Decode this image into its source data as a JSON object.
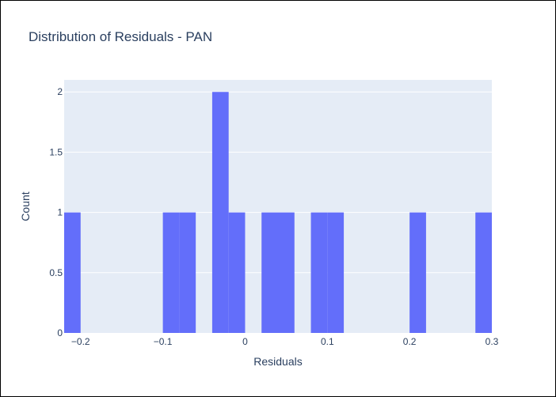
{
  "chart_data": {
    "type": "bar",
    "title": "Distribution of Residuals - PAN",
    "xlabel": "Residuals",
    "ylabel": "Count",
    "bin_width": 0.02,
    "xlim": [
      -0.22,
      0.3
    ],
    "ylim": [
      0,
      2.1
    ],
    "grid": true,
    "x_ticks": [
      {
        "value": -0.2,
        "label": "−0.2"
      },
      {
        "value": -0.1,
        "label": "−0.1"
      },
      {
        "value": 0,
        "label": "0"
      },
      {
        "value": 0.1,
        "label": "0.1"
      },
      {
        "value": 0.2,
        "label": "0.2"
      },
      {
        "value": 0.3,
        "label": "0.3"
      }
    ],
    "y_ticks": [
      {
        "value": 0,
        "label": "0"
      },
      {
        "value": 0.5,
        "label": "0.5"
      },
      {
        "value": 1,
        "label": "1"
      },
      {
        "value": 1.5,
        "label": "1.5"
      },
      {
        "value": 2,
        "label": "2"
      }
    ],
    "bins": [
      {
        "start": -0.22,
        "count": 1
      },
      {
        "start": -0.1,
        "count": 1
      },
      {
        "start": -0.08,
        "count": 1
      },
      {
        "start": -0.04,
        "count": 2
      },
      {
        "start": -0.02,
        "count": 1
      },
      {
        "start": 0.02,
        "count": 1
      },
      {
        "start": 0.04,
        "count": 1
      },
      {
        "start": 0.08,
        "count": 1
      },
      {
        "start": 0.1,
        "count": 1
      },
      {
        "start": 0.2,
        "count": 1
      },
      {
        "start": 0.28,
        "count": 1
      }
    ],
    "colors": {
      "bar": "#636efa",
      "plot_bg": "#e5ecf6",
      "grid": "#ffffff",
      "text": "#2a3f5f"
    }
  }
}
